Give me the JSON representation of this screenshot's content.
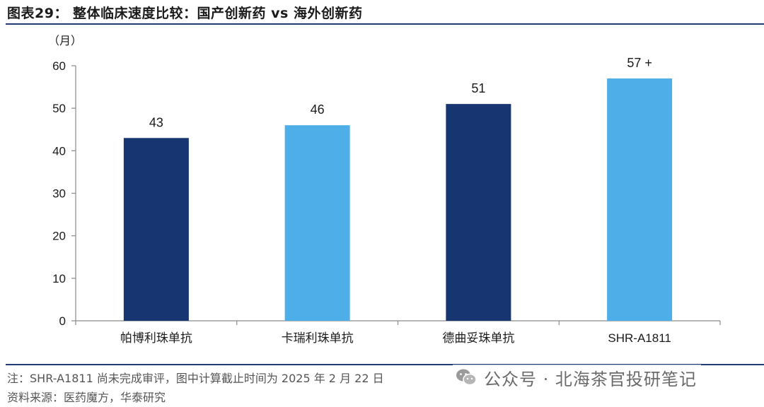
{
  "header": {
    "title": "图表29：  整体临床速度比较：国产创新药 vs 海外创新药"
  },
  "chart_data": {
    "type": "bar",
    "title": "",
    "unit": "（月）",
    "categories": [
      "帕博利珠单抗",
      "卡瑞利珠单抗",
      "德曲妥珠单抗",
      "SHR-A1811"
    ],
    "values": [
      43,
      46,
      51,
      57
    ],
    "data_labels": [
      "43",
      "46",
      "51",
      "57 +"
    ],
    "bar_colors": [
      "#173571",
      "#4daee8",
      "#173571",
      "#4daee8"
    ],
    "ylim": [
      0,
      60
    ],
    "yticks": [
      0,
      10,
      20,
      30,
      40,
      50,
      60
    ],
    "ytick_labels": [
      "0",
      "10",
      "20",
      "30",
      "40",
      "50",
      "60"
    ],
    "xlabel": "",
    "ylabel": "",
    "grid": false,
    "legend": "none"
  },
  "footer": {
    "note": "注：SHR-A1811 尚未完成审评，图中计算截止时间为 2025 年 2 月 22 日",
    "source": "资料来源：医药魔方，华泰研究"
  },
  "watermark": {
    "icon": "wechat-icon",
    "text": "公众号 · 北海茶官投研笔记"
  }
}
